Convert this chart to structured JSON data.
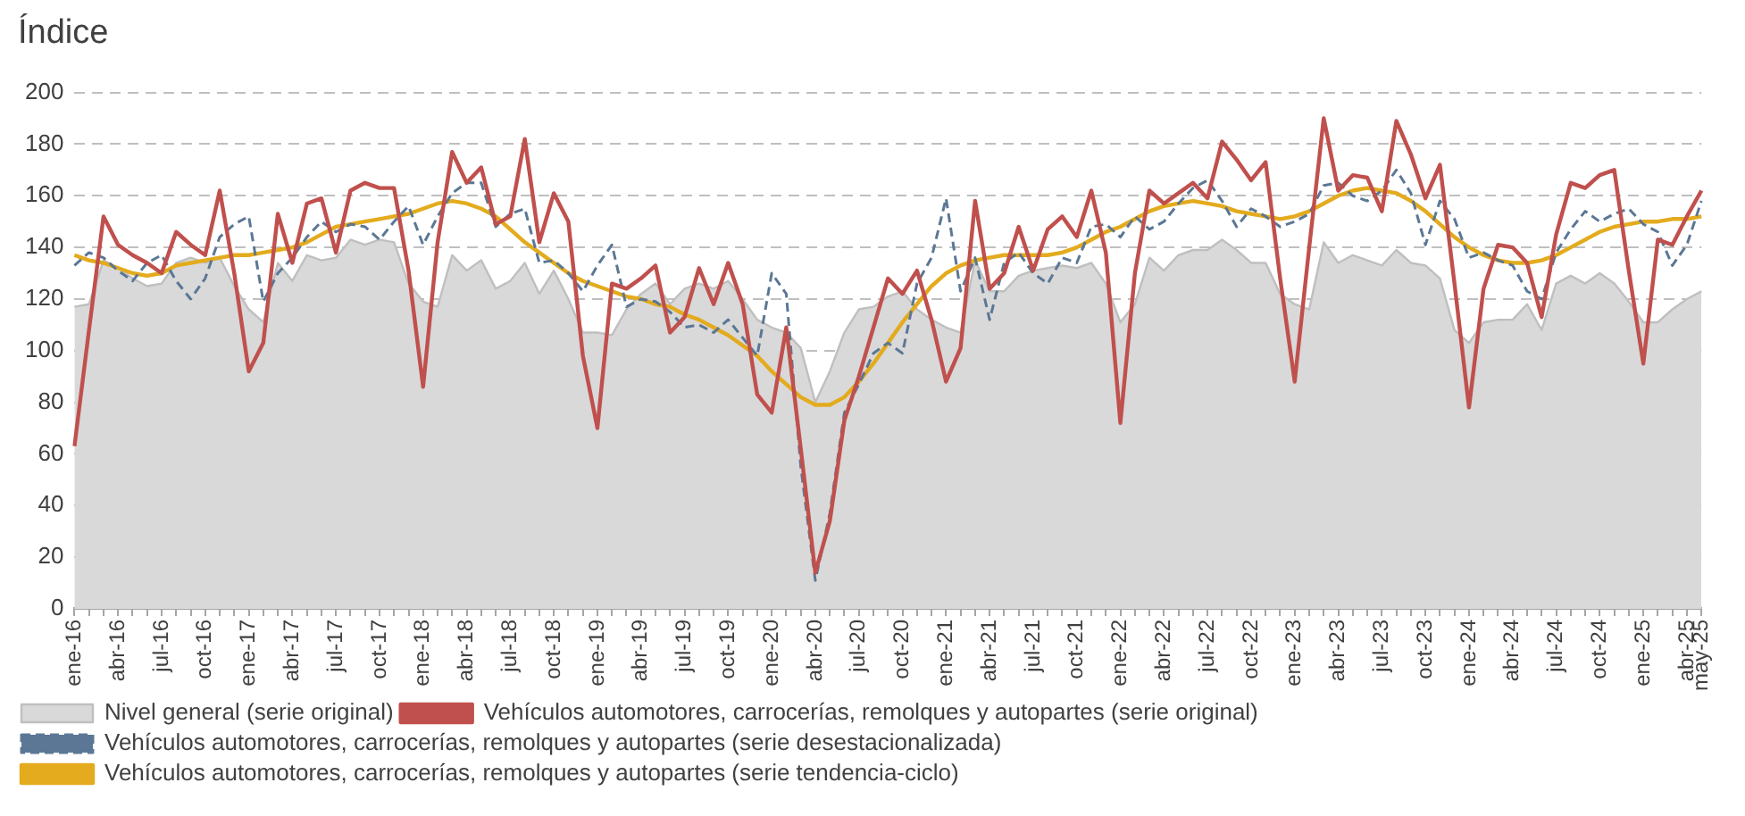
{
  "chart_data": {
    "type": "line",
    "ylabel": "Índice",
    "categories": [
      "ene-16",
      null,
      null,
      "abr-16",
      null,
      null,
      "jul-16",
      null,
      null,
      "oct-16",
      null,
      null,
      "ene-17",
      null,
      null,
      "abr-17",
      null,
      null,
      "jul-17",
      null,
      null,
      "oct-17",
      null,
      null,
      "ene-18",
      null,
      null,
      "abr-18",
      null,
      null,
      "jul-18",
      null,
      null,
      "oct-18",
      null,
      null,
      "ene-19",
      null,
      null,
      "abr-19",
      null,
      null,
      "jul-19",
      null,
      null,
      "oct-19",
      null,
      null,
      "ene-20",
      null,
      null,
      "abr-20",
      null,
      null,
      "jul-20",
      null,
      null,
      "oct-20",
      null,
      null,
      "ene-21",
      null,
      null,
      "abr-21",
      null,
      null,
      "jul-21",
      null,
      null,
      "oct-21",
      null,
      null,
      "ene-22",
      null,
      null,
      "abr-22",
      null,
      null,
      "jul-22",
      null,
      null,
      "oct-22",
      null,
      null,
      "ene-23",
      null,
      null,
      "abr-23",
      null,
      null,
      "jul-23",
      null,
      null,
      "oct-23",
      null,
      null,
      "ene-24",
      null,
      null,
      "abr-24",
      null,
      null,
      "jul-24",
      null,
      null,
      "oct-24",
      null,
      null,
      "ene-25",
      null,
      null,
      "abr-25",
      "may-25"
    ],
    "series": [
      {
        "name": "Nivel general (serie original)",
        "type": "area",
        "color": "#d9d9d9",
        "values": [
          117,
          118,
          135,
          132,
          128,
          125,
          126,
          134,
          136,
          134,
          136,
          125,
          116,
          111,
          134,
          127,
          137,
          135,
          136,
          143,
          141,
          143,
          142,
          126,
          119,
          117,
          137,
          131,
          135,
          124,
          127,
          134,
          122,
          131,
          120,
          107,
          107,
          106,
          116,
          122,
          126,
          118,
          124,
          126,
          124,
          127,
          120,
          112,
          109,
          107,
          101,
          80,
          92,
          107,
          116,
          117,
          121,
          123,
          116,
          112,
          109,
          107,
          135,
          123,
          123,
          129,
          131,
          132,
          133,
          132,
          134,
          126,
          111,
          118,
          136,
          131,
          137,
          139,
          139,
          143,
          139,
          134,
          134,
          122,
          118,
          116,
          142,
          134,
          137,
          135,
          133,
          139,
          134,
          133,
          128,
          108,
          103,
          111,
          112,
          112,
          118,
          108,
          126,
          129,
          126,
          130,
          126,
          119,
          111,
          111,
          116,
          120,
          123
        ]
      },
      {
        "name": "Vehículos automotores, carrocerías, remolques y autopartes (serie original)",
        "color": "#c0504d",
        "line_style": "solid",
        "values": [
          63,
          108,
          152,
          141,
          137,
          134,
          130,
          146,
          141,
          137,
          162,
          130,
          92,
          103,
          153,
          134,
          157,
          159,
          138,
          162,
          165,
          163,
          163,
          131,
          86,
          142,
          177,
          165,
          171,
          149,
          152,
          182,
          142,
          161,
          150,
          98,
          70,
          126,
          124,
          128,
          133,
          107,
          113,
          132,
          118,
          134,
          118,
          83,
          76,
          109,
          62,
          14,
          34,
          73,
          90,
          109,
          128,
          122,
          131,
          112,
          88,
          101,
          158,
          124,
          130,
          148,
          131,
          147,
          152,
          144,
          162,
          138,
          72,
          130,
          162,
          157,
          161,
          165,
          159,
          181,
          174,
          166,
          173,
          128,
          88,
          140,
          190,
          162,
          168,
          167,
          154,
          189,
          176,
          159,
          172,
          126,
          78,
          124,
          141,
          140,
          134,
          113,
          145,
          165,
          163,
          168,
          170,
          131,
          95,
          143,
          141,
          152,
          162
        ]
      },
      {
        "name": "Vehículos automotores, carrocerías, remolques y autopartes (serie desestacionalizada)",
        "color": "#5b7795",
        "line_style": "dashed",
        "values": [
          133,
          138,
          136,
          131,
          127,
          134,
          137,
          127,
          120,
          128,
          144,
          149,
          152,
          119,
          130,
          136,
          144,
          150,
          146,
          149,
          148,
          143,
          150,
          156,
          141,
          152,
          161,
          165,
          165,
          148,
          153,
          155,
          134,
          135,
          130,
          123,
          133,
          141,
          117,
          120,
          119,
          115,
          109,
          110,
          107,
          112,
          105,
          98,
          130,
          122,
          55,
          11,
          37,
          76,
          87,
          99,
          103,
          99,
          126,
          136,
          159,
          123,
          136,
          112,
          134,
          138,
          130,
          126,
          136,
          134,
          148,
          149,
          144,
          152,
          147,
          150,
          157,
          163,
          166,
          158,
          148,
          155,
          152,
          148,
          150,
          153,
          164,
          165,
          160,
          158,
          162,
          170,
          161,
          141,
          158,
          151,
          136,
          138,
          135,
          133,
          123,
          120,
          138,
          147,
          154,
          150,
          153,
          155,
          149,
          146,
          133,
          141,
          158
        ]
      },
      {
        "name": "Vehículos automotores, carrocerías, remolques y autopartes (serie tendencia-ciclo)",
        "color": "#e3ab1d",
        "line_style": "solid",
        "values": [
          137,
          135,
          134,
          132,
          130,
          129,
          130,
          133,
          134,
          135,
          136,
          137,
          137,
          138,
          139,
          140,
          142,
          145,
          148,
          149,
          150,
          151,
          152,
          153,
          155,
          157,
          158,
          157,
          155,
          152,
          147,
          142,
          138,
          134,
          130,
          127,
          125,
          123,
          121,
          120,
          118,
          117,
          114,
          112,
          109,
          106,
          102,
          98,
          92,
          87,
          82,
          79,
          79,
          82,
          88,
          95,
          103,
          111,
          118,
          125,
          130,
          133,
          135,
          136,
          137,
          137,
          137,
          137,
          138,
          140,
          143,
          146,
          148,
          151,
          154,
          156,
          157,
          158,
          157,
          156,
          154,
          153,
          152,
          151,
          152,
          154,
          157,
          160,
          162,
          163,
          162,
          161,
          158,
          154,
          149,
          144,
          140,
          137,
          135,
          134,
          134,
          135,
          137,
          140,
          143,
          146,
          148,
          149,
          150,
          150,
          151,
          151,
          152
        ]
      }
    ],
    "ylim": [
      0,
      200
    ],
    "yticks": [
      0,
      20,
      40,
      60,
      80,
      100,
      120,
      140,
      160,
      180,
      200
    ],
    "grid": "y",
    "legend": "bottom",
    "marker": "none"
  }
}
